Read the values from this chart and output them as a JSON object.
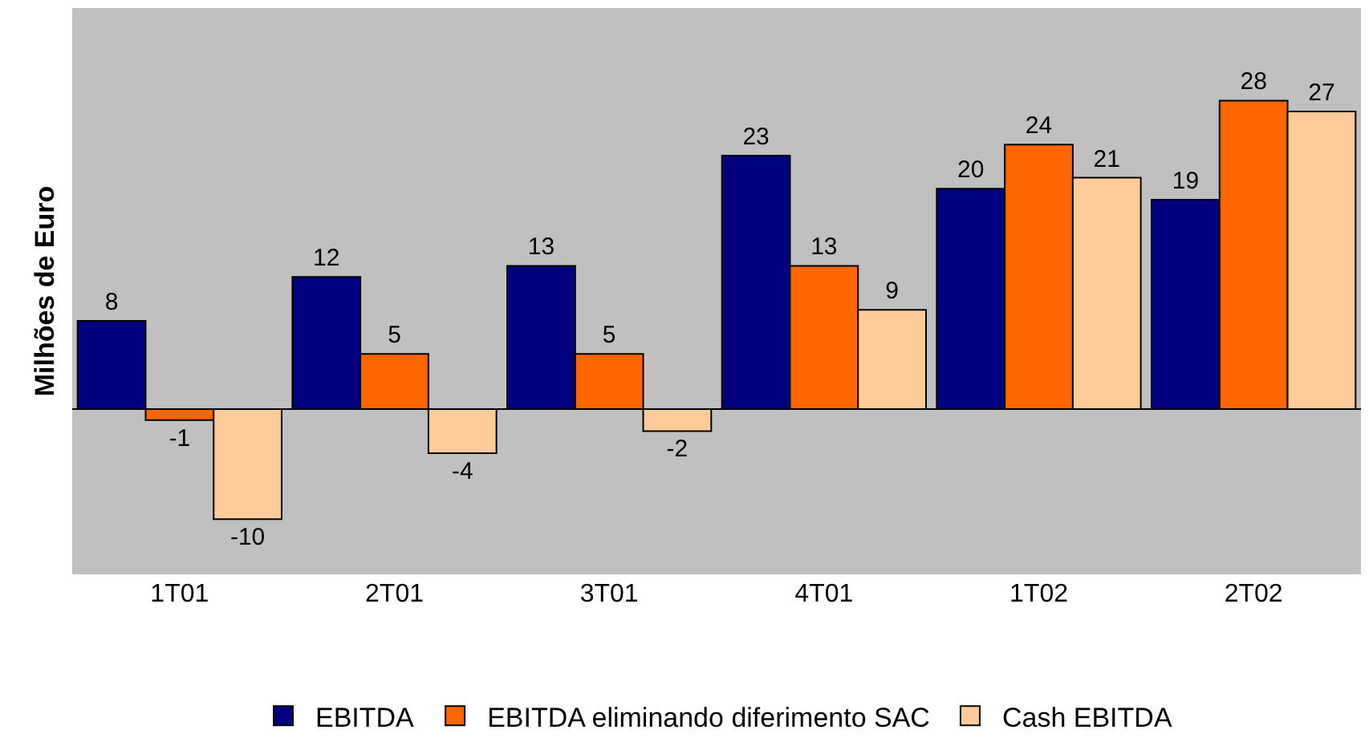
{
  "chart_data": {
    "type": "bar",
    "ylabel": "Milhões de Euro",
    "categories": [
      "1T01",
      "2T01",
      "3T01",
      "4T01",
      "1T02",
      "2T02"
    ],
    "series": [
      {
        "name": "EBITDA",
        "color": "#000080",
        "values": [
          8,
          12,
          13,
          23,
          20,
          19
        ]
      },
      {
        "name": "EBITDA eliminando diferimento SAC",
        "color": "#ff6600",
        "values": [
          -1,
          5,
          5,
          13,
          24,
          28
        ]
      },
      {
        "name": "Cash EBITDA",
        "color": "#ffcc99",
        "values": [
          -10,
          -4,
          -2,
          9,
          21,
          27
        ]
      }
    ],
    "data_labels": true,
    "grid": false,
    "legend": "bottom"
  }
}
